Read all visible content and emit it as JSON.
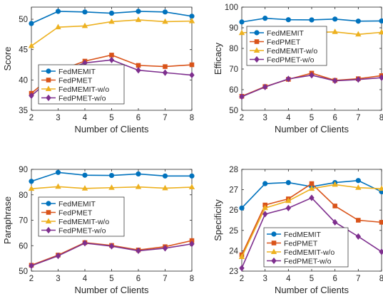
{
  "colors": {
    "FedMEMIT": "#0072BD",
    "FedPMET": "#D95319",
    "FedMEMIT-w/o": "#EDB120",
    "FedPMET-w/o": "#7E2F8E"
  },
  "markers": {
    "FedMEMIT": "circle",
    "FedPMET": "square",
    "FedMEMIT-w/o": "triangle",
    "FedPMET-w/o": "diamond"
  },
  "chart_data": [
    {
      "type": "line",
      "xlabel": "Number of Clients",
      "ylabel": "Score",
      "x": [
        2,
        3,
        4,
        5,
        6,
        7,
        8
      ],
      "xlim": [
        2,
        8
      ],
      "ylim": [
        35,
        52
      ],
      "yticks": [
        35,
        40,
        45,
        50
      ],
      "legend_position": "center-left",
      "series": [
        {
          "name": "FedMEMIT",
          "values": [
            49.3,
            51.3,
            51.2,
            51.0,
            51.3,
            51.2,
            50.5
          ]
        },
        {
          "name": "FedPMET",
          "values": [
            37.8,
            41.5,
            43.1,
            44.1,
            42.4,
            42.2,
            42.5
          ]
        },
        {
          "name": "FedMEMIT-w/o",
          "values": [
            45.6,
            48.7,
            48.9,
            49.6,
            49.9,
            49.6,
            49.7
          ]
        },
        {
          "name": "FedPMET-w/o",
          "values": [
            37.4,
            41.2,
            42.8,
            43.3,
            41.6,
            41.2,
            40.8
          ]
        }
      ]
    },
    {
      "type": "line",
      "xlabel": "Number of Clients",
      "ylabel": "Efficacy",
      "x": [
        2,
        3,
        4,
        5,
        6,
        7,
        8
      ],
      "xlim": [
        2,
        8
      ],
      "ylim": [
        50,
        100
      ],
      "yticks": [
        50,
        60,
        70,
        80,
        90,
        100
      ],
      "legend_position": "center-left",
      "series": [
        {
          "name": "FedMEMIT",
          "values": [
            92.8,
            94.6,
            93.9,
            93.8,
            94.2,
            93.2,
            93.3
          ]
        },
        {
          "name": "FedPMET",
          "values": [
            56.8,
            61.5,
            65.0,
            68.0,
            64.5,
            65.3,
            66.8
          ]
        },
        {
          "name": "FedMEMIT-w/o",
          "values": [
            87.5,
            88.5,
            88.1,
            87.7,
            88.0,
            86.8,
            87.8
          ]
        },
        {
          "name": "FedPMET-w/o",
          "values": [
            56.6,
            61.3,
            65.2,
            67.0,
            64.3,
            64.9,
            65.8
          ]
        }
      ]
    },
    {
      "type": "line",
      "xlabel": "Number of Clients",
      "ylabel": "Paraphrase",
      "x": [
        2,
        3,
        4,
        5,
        6,
        7,
        8
      ],
      "xlim": [
        2,
        8
      ],
      "ylim": [
        50,
        90
      ],
      "yticks": [
        50,
        60,
        70,
        80,
        90
      ],
      "legend_position": "center-left",
      "series": [
        {
          "name": "FedMEMIT",
          "values": [
            85.3,
            88.8,
            87.7,
            87.6,
            88.2,
            87.4,
            87.4
          ]
        },
        {
          "name": "FedPMET",
          "values": [
            52.3,
            56.3,
            61.2,
            60.1,
            58.3,
            59.6,
            62.0
          ]
        },
        {
          "name": "FedMEMIT-w/o",
          "values": [
            82.4,
            83.2,
            82.5,
            82.8,
            83.1,
            82.6,
            83.0
          ]
        },
        {
          "name": "FedPMET-w/o",
          "values": [
            52.1,
            56.0,
            61.0,
            59.8,
            58.0,
            59.0,
            60.7
          ]
        }
      ]
    },
    {
      "type": "line",
      "xlabel": "Number of Clients",
      "ylabel": "Specificity",
      "x": [
        2,
        3,
        4,
        5,
        6,
        7,
        8
      ],
      "xlim": [
        2,
        8
      ],
      "ylim": [
        23,
        28
      ],
      "yticks": [
        23,
        24,
        25,
        26,
        27,
        28
      ],
      "legend_position": "bottom-center",
      "series": [
        {
          "name": "FedMEMIT",
          "values": [
            26.1,
            27.3,
            27.35,
            27.15,
            27.35,
            27.45,
            26.9
          ]
        },
        {
          "name": "FedPMET",
          "values": [
            23.8,
            26.25,
            26.55,
            27.3,
            26.2,
            25.5,
            25.4
          ]
        },
        {
          "name": "FedMEMIT-w/o",
          "values": [
            23.7,
            26.1,
            26.45,
            27.05,
            27.25,
            27.1,
            27.05
          ]
        },
        {
          "name": "FedPMET-w/o",
          "values": [
            23.15,
            25.8,
            26.1,
            26.6,
            25.4,
            24.7,
            23.95
          ]
        }
      ]
    }
  ]
}
